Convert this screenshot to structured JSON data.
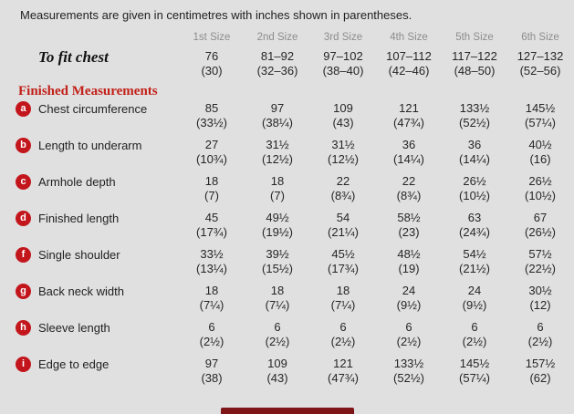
{
  "intro": "Measurements are given in centimetres with inches shown in parentheses.",
  "size_headers": [
    "1st Size",
    "2nd Size",
    "3rd Size",
    "4th Size",
    "5th Size",
    "6th Size"
  ],
  "to_fit_chest": {
    "label": "To fit chest",
    "cm": [
      "76",
      "81–92",
      "97–102",
      "107–112",
      "117–122",
      "127–132"
    ],
    "inches": [
      "(30)",
      "(32–36)",
      "(38–40)",
      "(42–46)",
      "(48–50)",
      "(52–56)"
    ]
  },
  "section_heading": "Finished Measurements",
  "rows": [
    {
      "badge": "a",
      "label": "Chest circumference",
      "cm": [
        "85",
        "97",
        "109",
        "121",
        "133½",
        "145½"
      ],
      "inches": [
        "(33½)",
        "(38¼)",
        "(43)",
        "(47¾)",
        "(52½)",
        "(57¼)"
      ]
    },
    {
      "badge": "b",
      "label": "Length to underarm",
      "cm": [
        "27",
        "31½",
        "31½",
        "36",
        "36",
        "40½"
      ],
      "inches": [
        "(10¾)",
        "(12½)",
        "(12½)",
        "(14¼)",
        "(14¼)",
        "(16)"
      ]
    },
    {
      "badge": "c",
      "label": "Armhole depth",
      "cm": [
        "18",
        "18",
        "22",
        "22",
        "26½",
        "26½"
      ],
      "inches": [
        "(7)",
        "(7)",
        "(8¾)",
        "(8¾)",
        "(10½)",
        "(10½)"
      ]
    },
    {
      "badge": "d",
      "label": "Finished length",
      "cm": [
        "45",
        "49½",
        "54",
        "58½",
        "63",
        "67"
      ],
      "inches": [
        "(17¾)",
        "(19½)",
        "(21¼)",
        "(23)",
        "(24¾)",
        "(26½)"
      ]
    },
    {
      "badge": "f",
      "label": "Single shoulder",
      "cm": [
        "33½",
        "39½",
        "45½",
        "48½",
        "54½",
        "57½"
      ],
      "inches": [
        "(13¼)",
        "(15½)",
        "(17¾)",
        "(19)",
        "(21½)",
        "(22½)"
      ]
    },
    {
      "badge": "g",
      "label": "Back neck width",
      "cm": [
        "18",
        "18",
        "18",
        "24",
        "24",
        "30½"
      ],
      "inches": [
        "(7¼)",
        "(7¼)",
        "(7¼)",
        "(9½)",
        "(9½)",
        "(12)"
      ]
    },
    {
      "badge": "h",
      "label": "Sleeve length",
      "cm": [
        "6",
        "6",
        "6",
        "6",
        "6",
        "6"
      ],
      "inches": [
        "(2½)",
        "(2½)",
        "(2½)",
        "(2½)",
        "(2½)",
        "(2½)"
      ]
    },
    {
      "badge": "i",
      "label": "Edge to edge",
      "cm": [
        "97",
        "109",
        "121",
        "133½",
        "145½",
        "157½"
      ],
      "inches": [
        "(38)",
        "(43)",
        "(47¾)",
        "(52½)",
        "(57¼)",
        "(62)"
      ]
    }
  ],
  "colors": {
    "background": "#e0e0e0",
    "badge_red": "#c3161c",
    "heading_red": "#c22018",
    "bottom_bar": "#7e1517",
    "size_header_gray": "#8c8c8c",
    "text": "#262626"
  }
}
